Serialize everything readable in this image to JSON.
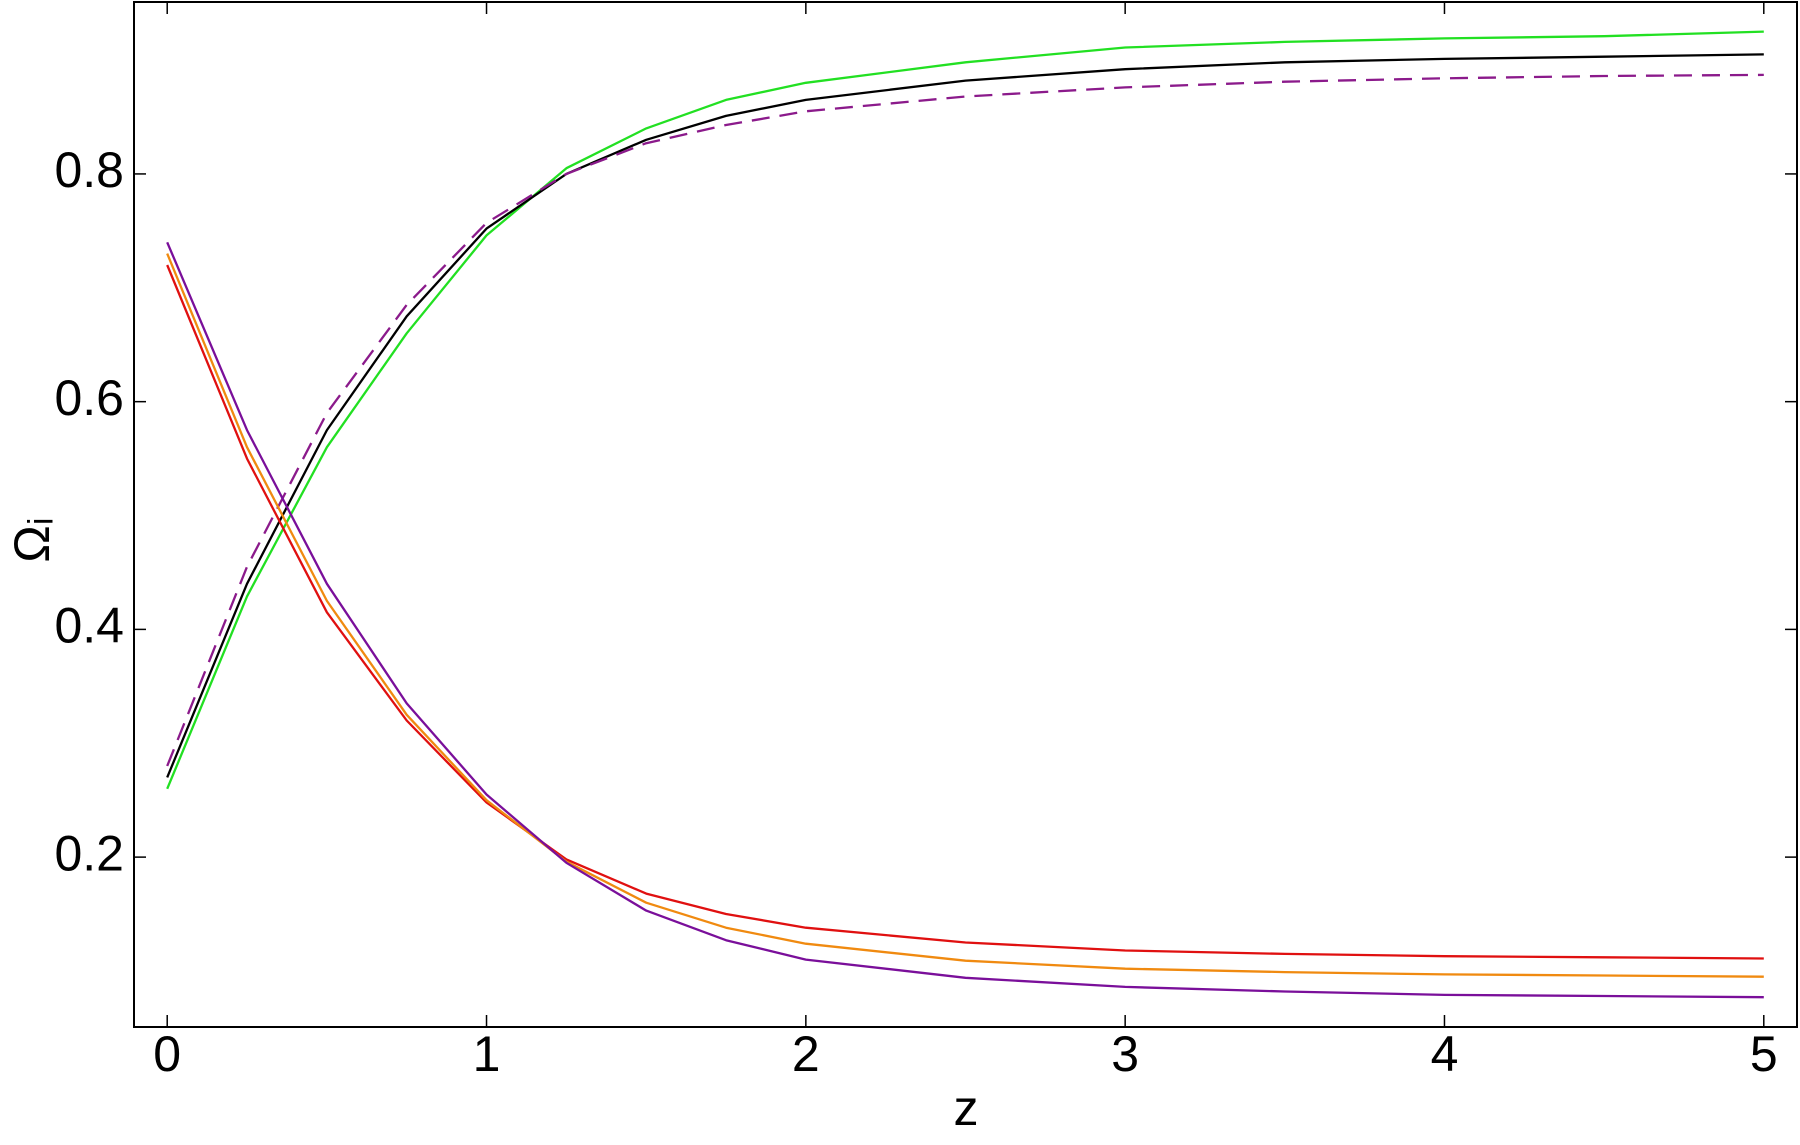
{
  "chart_data": {
    "type": "line",
    "xlabel": "z",
    "ylabel": "Ωᵢ",
    "x": [
      0,
      0.25,
      0.5,
      0.75,
      1,
      1.25,
      1.5,
      1.75,
      2,
      2.5,
      3,
      3.5,
      4,
      4.5,
      5
    ],
    "series": [
      {
        "color": "#22e022",
        "values": [
          0.26,
          0.429,
          0.56,
          0.66,
          0.746,
          0.805,
          0.84,
          0.865,
          0.88,
          0.898,
          0.911,
          0.916,
          0.919,
          0.921,
          0.925
        ]
      },
      {
        "color": "#000000",
        "values": [
          0.27,
          0.44,
          0.575,
          0.675,
          0.752,
          0.8,
          0.83,
          0.851,
          0.865,
          0.882,
          0.892,
          0.898,
          0.901,
          0.903,
          0.905
        ]
      },
      {
        "color": "#8b1a8b",
        "dashed": true,
        "values": [
          0.28,
          0.455,
          0.59,
          0.685,
          0.757,
          0.8,
          0.827,
          0.843,
          0.855,
          0.868,
          0.876,
          0.881,
          0.884,
          0.886,
          0.887
        ]
      },
      {
        "color": "#e01010",
        "values": [
          0.72,
          0.55,
          0.415,
          0.32,
          0.248,
          0.198,
          0.168,
          0.15,
          0.138,
          0.125,
          0.118,
          0.115,
          0.113,
          0.112,
          0.111
        ]
      },
      {
        "color": "#f08a10",
        "values": [
          0.73,
          0.56,
          0.425,
          0.325,
          0.25,
          0.196,
          0.16,
          0.138,
          0.124,
          0.109,
          0.102,
          0.099,
          0.097,
          0.096,
          0.095
        ]
      },
      {
        "color": "#7a0f9a",
        "values": [
          0.74,
          0.575,
          0.44,
          0.335,
          0.255,
          0.195,
          0.153,
          0.127,
          0.11,
          0.094,
          0.086,
          0.082,
          0.079,
          0.078,
          0.077
        ]
      }
    ],
    "xlim": [
      -0.104,
      5.104
    ],
    "ylim": [
      0.0508,
      0.951
    ],
    "xticks": [
      0,
      1,
      2,
      3,
      4,
      5
    ],
    "yticks": [
      0.2,
      0.4,
      0.6,
      0.8
    ]
  }
}
